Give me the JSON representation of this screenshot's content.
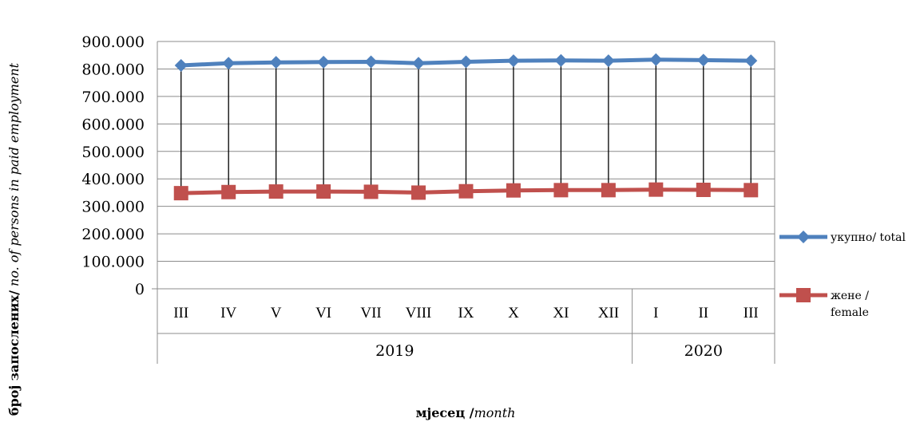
{
  "chart_data": {
    "type": "line",
    "categories": [
      "III",
      "IV",
      "V",
      "VI",
      "VII",
      "VIII",
      "IX",
      "X",
      "XI",
      "XII",
      "I",
      "II",
      "III"
    ],
    "year_groups": [
      {
        "label": "2019",
        "count": 10
      },
      {
        "label": "2020",
        "count": 3
      }
    ],
    "series": [
      {
        "name": "укупно/ total",
        "color": "#4f81bd",
        "marker": "diamond",
        "values": [
          813000,
          821000,
          824000,
          825000,
          826000,
          821000,
          826000,
          830000,
          831000,
          830000,
          834000,
          832000,
          830000
        ]
      },
      {
        "name_lines": [
          "жене /",
          "female"
        ],
        "color": "#c0504d",
        "marker": "square",
        "values": [
          348000,
          352000,
          354000,
          354000,
          353000,
          350000,
          355000,
          358000,
          359000,
          359000,
          361000,
          360000,
          359000
        ]
      }
    ],
    "y_ticks": [
      "0",
      "100.000",
      "200.000",
      "300.000",
      "400.000",
      "500.000",
      "600.000",
      "700.000",
      "800.000",
      "900.000"
    ],
    "ylim": [
      0,
      900000
    ],
    "ylabel_bold": "број запослених/",
    "ylabel_italic": " no. of persons  in paid employment",
    "xlabel_bold": "мјесец /",
    "xlabel_italic": "month",
    "drop_lines": true,
    "grid": true,
    "legend_position": "right"
  }
}
